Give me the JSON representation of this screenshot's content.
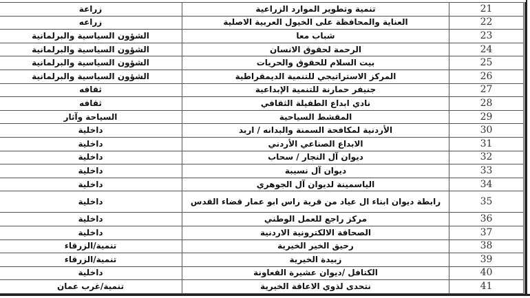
{
  "rows": [
    {
      "num": "21",
      "name": "تنمية وتطوير الموارد الزراعية",
      "sector": "زراعة"
    },
    {
      "num": "22",
      "name": "العناية والمحافظة على الخيول العربية الاصلية",
      "sector": "زراعه"
    },
    {
      "num": "23",
      "name": "شباب معا",
      "sector": "الشؤون السياسية والبرلمانية"
    },
    {
      "num": "24",
      "name": "الرحمة لحقوق الانسان",
      "sector": "الشؤون السياسية والبرلمانية"
    },
    {
      "num": "25",
      "name": "بيت السلام للحقوق والحريات",
      "sector": "الشؤون السياسية والبرلمانية"
    },
    {
      "num": "26",
      "name": "المركز الاستراتيجي للتنمية الديمقراطية",
      "sector": "الشؤون السياسية والبرلمانية"
    },
    {
      "num": "27",
      "name": "جنيفر حمارنة للتنمية الإبداعية",
      "sector": "ثقافه"
    },
    {
      "num": "28",
      "name": "نادي ابداع الطفيلة الثقافي",
      "sector": "ثقافه"
    },
    {
      "num": "29",
      "name": "المقشط السياحية",
      "sector": "السياحة وآثار"
    },
    {
      "num": "30",
      "name": "الأردنية لمكافحة السمنة والبدانه / اربد",
      "sector": "داخلية"
    },
    {
      "num": "31",
      "name": "الابداع الصناعي الأردني",
      "sector": "داخلية"
    },
    {
      "num": "32",
      "name": "ديوان آل النجار / سحاب",
      "sector": "داخلية"
    },
    {
      "num": "33",
      "name": "ديوان آل نسيبة",
      "sector": "داخلية"
    },
    {
      "num": "34",
      "name": "الياسمينة لديوان آل الجوهري",
      "sector": "داخلية"
    },
    {
      "num": "35",
      "name": "رابطة ديوان ابناء ال عياد من قرية راس ابو عمار قضاء القدس",
      "sector": "داخلية"
    },
    {
      "num": "36",
      "name": "مركز راجع للعمل الوطني",
      "sector": "داخلية"
    },
    {
      "num": "37",
      "name": "الصحافة الالكترونية الاردنية",
      "sector": "داخلية"
    },
    {
      "num": "38",
      "name": "رحيق الخير الخيرية",
      "sector": "تنمية/الزرقاء"
    },
    {
      "num": "39",
      "name": "زبيدة الخيرية",
      "sector": "تنمية/الزرقاء"
    },
    {
      "num": "40",
      "name": "الكتافل /ديوان عشيرة القعاونة",
      "sector": "داخلية"
    },
    {
      "num": "41",
      "name": "نتحدى لذوي الاعاقة الخيرية",
      "sector": "تنمية/غرب عمان"
    }
  ]
}
